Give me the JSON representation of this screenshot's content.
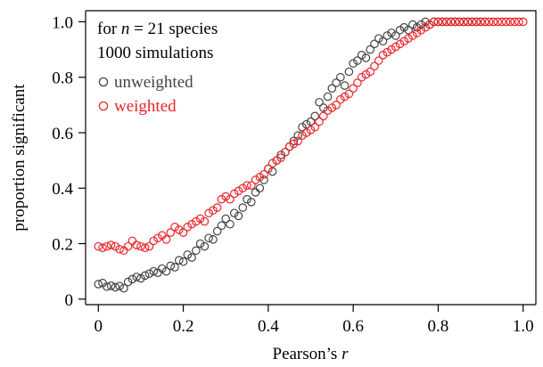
{
  "chart_data": {
    "type": "scatter",
    "title": "",
    "xlabel_prefix": "Pearson’s ",
    "xlabel_var": "r",
    "ylabel": "proportion significant",
    "xlim": [
      -0.03,
      1.03
    ],
    "ylim": [
      -0.02,
      1.04
    ],
    "x_ticks": [
      0,
      0.2,
      0.4,
      0.6,
      0.8,
      1.0
    ],
    "x_tick_labels": [
      "0",
      "0.2",
      "0.4",
      "0.6",
      "0.8",
      "1.0"
    ],
    "y_ticks": [
      0,
      0.2,
      0.4,
      0.6,
      0.8,
      1.0
    ],
    "y_tick_labels": [
      "0",
      "0.2",
      "0.4",
      "0.6",
      "0.8",
      "1.0"
    ],
    "grid": false,
    "legend_position": "top-left",
    "legend_header": {
      "line1_prefix": "for ",
      "line1_var": "n",
      "line1_suffix": " = 21 species",
      "line2": "1000 simulations"
    },
    "series": [
      {
        "name": "unweighted",
        "color": "#444444",
        "marker": "open-circle",
        "points": [
          [
            0.0,
            0.054
          ],
          [
            0.01,
            0.058
          ],
          [
            0.02,
            0.045
          ],
          [
            0.03,
            0.048
          ],
          [
            0.04,
            0.043
          ],
          [
            0.05,
            0.047
          ],
          [
            0.06,
            0.039
          ],
          [
            0.07,
            0.062
          ],
          [
            0.08,
            0.072
          ],
          [
            0.09,
            0.08
          ],
          [
            0.1,
            0.075
          ],
          [
            0.11,
            0.085
          ],
          [
            0.12,
            0.092
          ],
          [
            0.13,
            0.1
          ],
          [
            0.14,
            0.095
          ],
          [
            0.15,
            0.11
          ],
          [
            0.16,
            0.1
          ],
          [
            0.17,
            0.12
          ],
          [
            0.18,
            0.115
          ],
          [
            0.19,
            0.14
          ],
          [
            0.2,
            0.135
          ],
          [
            0.21,
            0.16
          ],
          [
            0.22,
            0.15
          ],
          [
            0.23,
            0.175
          ],
          [
            0.24,
            0.2
          ],
          [
            0.25,
            0.19
          ],
          [
            0.26,
            0.22
          ],
          [
            0.27,
            0.215
          ],
          [
            0.28,
            0.245
          ],
          [
            0.29,
            0.265
          ],
          [
            0.3,
            0.29
          ],
          [
            0.31,
            0.27
          ],
          [
            0.32,
            0.31
          ],
          [
            0.33,
            0.3
          ],
          [
            0.34,
            0.33
          ],
          [
            0.35,
            0.36
          ],
          [
            0.36,
            0.35
          ],
          [
            0.37,
            0.385
          ],
          [
            0.38,
            0.4
          ],
          [
            0.39,
            0.43
          ],
          [
            0.4,
            0.47
          ],
          [
            0.41,
            0.46
          ],
          [
            0.42,
            0.5
          ],
          [
            0.43,
            0.52
          ],
          [
            0.44,
            0.53
          ],
          [
            0.45,
            0.55
          ],
          [
            0.46,
            0.57
          ],
          [
            0.47,
            0.59
          ],
          [
            0.48,
            0.62
          ],
          [
            0.49,
            0.63
          ],
          [
            0.5,
            0.64
          ],
          [
            0.51,
            0.66
          ],
          [
            0.52,
            0.71
          ],
          [
            0.53,
            0.69
          ],
          [
            0.54,
            0.73
          ],
          [
            0.55,
            0.76
          ],
          [
            0.56,
            0.78
          ],
          [
            0.57,
            0.8
          ],
          [
            0.58,
            0.77
          ],
          [
            0.59,
            0.82
          ],
          [
            0.6,
            0.85
          ],
          [
            0.61,
            0.86
          ],
          [
            0.62,
            0.88
          ],
          [
            0.63,
            0.87
          ],
          [
            0.64,
            0.9
          ],
          [
            0.65,
            0.92
          ],
          [
            0.66,
            0.94
          ],
          [
            0.67,
            0.93
          ],
          [
            0.68,
            0.95
          ],
          [
            0.69,
            0.96
          ],
          [
            0.7,
            0.95
          ],
          [
            0.71,
            0.97
          ],
          [
            0.72,
            0.98
          ],
          [
            0.73,
            0.97
          ],
          [
            0.74,
            0.99
          ],
          [
            0.75,
            0.98
          ],
          [
            0.76,
            0.99
          ],
          [
            0.77,
            1.0
          ],
          [
            0.78,
            0.99
          ],
          [
            0.79,
            1.0
          ],
          [
            0.8,
            1.0
          ],
          [
            0.81,
            1.0
          ],
          [
            0.82,
            1.0
          ],
          [
            0.83,
            1.0
          ],
          [
            0.84,
            1.0
          ],
          [
            0.85,
            1.0
          ],
          [
            0.86,
            1.0
          ],
          [
            0.87,
            1.0
          ],
          [
            0.88,
            1.0
          ],
          [
            0.89,
            1.0
          ],
          [
            0.9,
            1.0
          ],
          [
            0.91,
            1.0
          ]
        ]
      },
      {
        "name": "weighted",
        "color": "#e8262b",
        "marker": "open-circle",
        "points": [
          [
            0.0,
            0.19
          ],
          [
            0.01,
            0.185
          ],
          [
            0.02,
            0.19
          ],
          [
            0.03,
            0.195
          ],
          [
            0.04,
            0.19
          ],
          [
            0.05,
            0.18
          ],
          [
            0.06,
            0.175
          ],
          [
            0.07,
            0.19
          ],
          [
            0.08,
            0.21
          ],
          [
            0.09,
            0.195
          ],
          [
            0.1,
            0.19
          ],
          [
            0.11,
            0.185
          ],
          [
            0.12,
            0.19
          ],
          [
            0.13,
            0.21
          ],
          [
            0.14,
            0.22
          ],
          [
            0.15,
            0.23
          ],
          [
            0.16,
            0.215
          ],
          [
            0.17,
            0.24
          ],
          [
            0.18,
            0.26
          ],
          [
            0.19,
            0.25
          ],
          [
            0.2,
            0.24
          ],
          [
            0.21,
            0.26
          ],
          [
            0.22,
            0.27
          ],
          [
            0.23,
            0.28
          ],
          [
            0.24,
            0.29
          ],
          [
            0.25,
            0.28
          ],
          [
            0.26,
            0.31
          ],
          [
            0.27,
            0.32
          ],
          [
            0.28,
            0.33
          ],
          [
            0.29,
            0.36
          ],
          [
            0.3,
            0.37
          ],
          [
            0.31,
            0.36
          ],
          [
            0.32,
            0.38
          ],
          [
            0.33,
            0.39
          ],
          [
            0.34,
            0.4
          ],
          [
            0.35,
            0.41
          ],
          [
            0.36,
            0.41
          ],
          [
            0.37,
            0.43
          ],
          [
            0.38,
            0.44
          ],
          [
            0.39,
            0.45
          ],
          [
            0.4,
            0.47
          ],
          [
            0.41,
            0.49
          ],
          [
            0.42,
            0.5
          ],
          [
            0.43,
            0.51
          ],
          [
            0.44,
            0.53
          ],
          [
            0.45,
            0.55
          ],
          [
            0.46,
            0.56
          ],
          [
            0.47,
            0.57
          ],
          [
            0.48,
            0.59
          ],
          [
            0.49,
            0.6
          ],
          [
            0.5,
            0.61
          ],
          [
            0.51,
            0.62
          ],
          [
            0.52,
            0.64
          ],
          [
            0.53,
            0.66
          ],
          [
            0.54,
            0.68
          ],
          [
            0.55,
            0.69
          ],
          [
            0.56,
            0.7
          ],
          [
            0.57,
            0.72
          ],
          [
            0.58,
            0.73
          ],
          [
            0.59,
            0.74
          ],
          [
            0.6,
            0.76
          ],
          [
            0.61,
            0.78
          ],
          [
            0.62,
            0.8
          ],
          [
            0.63,
            0.81
          ],
          [
            0.64,
            0.82
          ],
          [
            0.65,
            0.84
          ],
          [
            0.66,
            0.86
          ],
          [
            0.67,
            0.88
          ],
          [
            0.68,
            0.89
          ],
          [
            0.69,
            0.9
          ],
          [
            0.7,
            0.91
          ],
          [
            0.71,
            0.92
          ],
          [
            0.72,
            0.93
          ],
          [
            0.73,
            0.94
          ],
          [
            0.74,
            0.95
          ],
          [
            0.75,
            0.96
          ],
          [
            0.76,
            0.97
          ],
          [
            0.77,
            0.98
          ],
          [
            0.78,
            0.99
          ],
          [
            0.79,
            1.0
          ],
          [
            0.8,
            1.0
          ],
          [
            0.81,
            1.0
          ],
          [
            0.82,
            1.0
          ],
          [
            0.83,
            1.0
          ],
          [
            0.84,
            1.0
          ],
          [
            0.85,
            1.0
          ],
          [
            0.86,
            1.0
          ],
          [
            0.87,
            1.0
          ],
          [
            0.88,
            1.0
          ],
          [
            0.89,
            1.0
          ],
          [
            0.9,
            1.0
          ],
          [
            0.91,
            1.0
          ],
          [
            0.92,
            1.0
          ],
          [
            0.93,
            1.0
          ],
          [
            0.94,
            1.0
          ],
          [
            0.95,
            1.0
          ],
          [
            0.96,
            1.0
          ],
          [
            0.97,
            1.0
          ],
          [
            0.98,
            1.0
          ],
          [
            0.99,
            1.0
          ],
          [
            1.0,
            1.0
          ]
        ]
      }
    ]
  }
}
